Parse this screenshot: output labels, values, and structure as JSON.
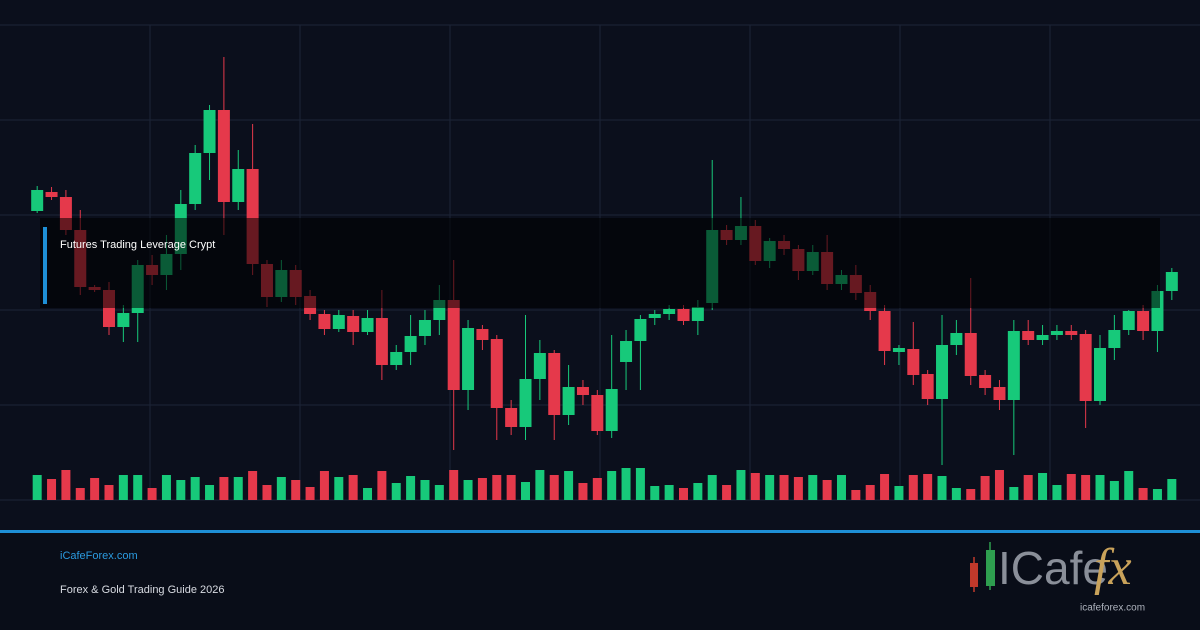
{
  "chart_data": {
    "type": "candlestick",
    "title": "Futures Trading Leverage Crypt",
    "up_color": "#17c97a",
    "down_color": "#e5394b",
    "ylim": [
      0,
      475
    ],
    "yticks": [
      0,
      95,
      190,
      285,
      380,
      475
    ],
    "grid": true,
    "open": [
      289,
      308,
      303,
      270,
      213,
      210,
      173,
      187,
      235,
      225,
      246,
      296,
      347,
      390,
      298,
      331,
      236,
      203,
      230,
      204,
      186,
      171,
      184,
      168,
      182,
      135,
      148,
      164,
      180,
      200,
      110,
      171,
      161,
      92,
      73,
      121,
      147,
      85,
      113,
      105,
      69,
      138,
      159,
      182,
      186,
      191,
      179,
      197,
      270,
      260,
      274,
      239,
      259,
      251,
      229,
      248,
      216,
      225,
      208,
      189,
      148,
      151,
      126,
      101,
      155,
      167,
      125,
      113,
      100,
      169,
      160,
      165,
      169,
      166,
      99,
      152,
      170,
      189,
      169,
      209
    ],
    "high": [
      314,
      313,
      310,
      290,
      215,
      218,
      195,
      240,
      245,
      265,
      310,
      355,
      395,
      443,
      350,
      376,
      240,
      240,
      235,
      210,
      190,
      190,
      190,
      190,
      210,
      155,
      185,
      190,
      215,
      240,
      180,
      175,
      165,
      100,
      185,
      160,
      150,
      135,
      120,
      110,
      165,
      170,
      185,
      190,
      195,
      195,
      200,
      340,
      275,
      303,
      280,
      262,
      265,
      255,
      255,
      265,
      230,
      235,
      215,
      195,
      155,
      178,
      130,
      185,
      180,
      222,
      130,
      120,
      180,
      180,
      175,
      175,
      175,
      170,
      165,
      185,
      190,
      195,
      215,
      232
    ],
    "low": [
      287,
      300,
      265,
      205,
      208,
      165,
      158,
      158,
      215,
      210,
      230,
      290,
      320,
      265,
      290,
      225,
      193,
      198,
      195,
      180,
      165,
      168,
      155,
      165,
      120,
      130,
      135,
      155,
      165,
      50,
      90,
      150,
      60,
      65,
      60,
      100,
      60,
      75,
      95,
      65,
      62,
      110,
      110,
      175,
      180,
      175,
      165,
      190,
      255,
      255,
      235,
      232,
      245,
      220,
      225,
      210,
      210,
      200,
      180,
      135,
      135,
      115,
      95,
      35,
      145,
      115,
      105,
      90,
      45,
      155,
      155,
      160,
      160,
      72,
      95,
      140,
      165,
      160,
      148,
      200
    ],
    "close": [
      310,
      303,
      270,
      213,
      210,
      173,
      187,
      235,
      225,
      246,
      296,
      347,
      390,
      298,
      331,
      236,
      203,
      230,
      203,
      186,
      171,
      185,
      168,
      182,
      135,
      148,
      164,
      180,
      200,
      110,
      172,
      160,
      92,
      73,
      121,
      147,
      85,
      113,
      105,
      69,
      111,
      159,
      181,
      186,
      191,
      179,
      193,
      270,
      260,
      274,
      239,
      259,
      251,
      229,
      248,
      216,
      225,
      207,
      189,
      149,
      152,
      125,
      101,
      155,
      167,
      124,
      112,
      100,
      169,
      160,
      165,
      169,
      165,
      99,
      152,
      170,
      189,
      169,
      209,
      228
    ],
    "volume": [
      25,
      21,
      30,
      12,
      22,
      15,
      25,
      25,
      12,
      25,
      20,
      23,
      15,
      23,
      23,
      29,
      15,
      23,
      20,
      13,
      29,
      23,
      25,
      12,
      29,
      17,
      24,
      20,
      15,
      30,
      20,
      22,
      25,
      25,
      18,
      30,
      25,
      29,
      17,
      22,
      29,
      32,
      32,
      14,
      15,
      12,
      17,
      25,
      15,
      30,
      27,
      25,
      25,
      23,
      25,
      20,
      25,
      10,
      15,
      26,
      14,
      25,
      26,
      24,
      12,
      11,
      24,
      30,
      13,
      25,
      27,
      15,
      26,
      25,
      25,
      19,
      29,
      12,
      11,
      21
    ]
  },
  "footer": {
    "site": "iCafeForex.com",
    "subtitle": "Forex & Gold Trading Guide 2026",
    "logo_text": "ICafe",
    "logo_fx": "fx",
    "logo_url": "icafeforex.com"
  }
}
